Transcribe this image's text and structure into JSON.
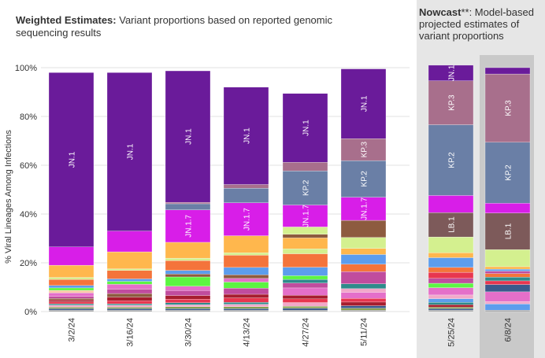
{
  "header": {
    "left_title_bold": "Weighted Estimates:",
    "left_title_rest": " Variant proportions based on reported genomic sequencing results",
    "right_title_bold": "Nowcast",
    "right_title_rest": "**: Model-based projected estimates of variant proportions"
  },
  "colors": {
    "JN.1": "#6a1b9a",
    "JN.1.7": "#d81ee8",
    "KP.2": "#6a7fa6",
    "KP.3": "#a86f8c",
    "LB.1": "#7d5a5a",
    "gold": "#ffb74d",
    "orange": "#f4743b",
    "blue": "#5c9ded",
    "lime": "#d4f08f",
    "green": "#5cf542",
    "pink": "#e46fc9",
    "magenta": "#c04c9e",
    "darkred": "#a61d2e",
    "red": "#e8364f",
    "teal": "#2e8b8b",
    "navy": "#3b5a8c",
    "olive": "#88a050",
    "lightpink": "#f2a8c9",
    "peach": "#f9c9a6",
    "grey": "#9e9e9e",
    "brown": "#8d5b3f",
    "nowcast_panel": "#e6e6e6",
    "nowcast_highlight": "#c9c9c9"
  },
  "chart_data": {
    "type": "bar",
    "stacked": true,
    "ylabel": "% Viral Lineages Among Infections",
    "ylim": [
      0,
      100
    ],
    "yticks": [
      "0%",
      "20%",
      "40%",
      "60%",
      "80%",
      "100%"
    ],
    "categories": [
      "3/2/24",
      "3/16/24",
      "3/30/24",
      "4/13/24",
      "4/27/24",
      "5/11/24",
      "5/25/24",
      "6/8/24"
    ],
    "nowcast_categories": [
      "5/25/24",
      "6/8/24"
    ],
    "stacks": [
      [
        [
          "grey",
          0.6
        ],
        [
          "navy",
          0.6
        ],
        [
          "olive",
          0.6
        ],
        [
          "lightpink",
          0.8
        ],
        [
          "teal",
          0.6
        ],
        [
          "red",
          0.8
        ],
        [
          "darkred",
          0.8
        ],
        [
          "brown",
          0.6
        ],
        [
          "magenta",
          0.8
        ],
        [
          "pink",
          1.5
        ],
        [
          "peach",
          1.0
        ],
        [
          "green",
          1.0
        ],
        [
          "blue",
          1.0
        ],
        [
          "orange",
          2.5
        ],
        [
          "lime",
          0.8
        ],
        [
          "gold",
          5.0
        ],
        [
          "JN.1.7",
          7.5
        ],
        [
          "JN.1",
          71.5
        ]
      ],
      [
        [
          "grey",
          0.6
        ],
        [
          "navy",
          0.6
        ],
        [
          "olive",
          0.6
        ],
        [
          "lightpink",
          0.8
        ],
        [
          "teal",
          0.6
        ],
        [
          "red",
          1.2
        ],
        [
          "darkred",
          1.5
        ],
        [
          "brown",
          1.5
        ],
        [
          "magenta",
          1.8
        ],
        [
          "pink",
          2.0
        ],
        [
          "green",
          1.2
        ],
        [
          "blue",
          1.0
        ],
        [
          "orange",
          3.5
        ],
        [
          "lime",
          0.6
        ],
        [
          "gold",
          7.0
        ],
        [
          "JN.1.7",
          8.5
        ],
        [
          "JN.1",
          65.0
        ]
      ],
      [
        [
          "grey",
          0.6
        ],
        [
          "navy",
          0.6
        ],
        [
          "olive",
          0.8
        ],
        [
          "lightpink",
          0.8
        ],
        [
          "teal",
          0.8
        ],
        [
          "red",
          1.5
        ],
        [
          "darkred",
          1.5
        ],
        [
          "magenta",
          2.0
        ],
        [
          "pink",
          1.8
        ],
        [
          "green",
          3.8
        ],
        [
          "brown",
          1.2
        ],
        [
          "blue",
          1.5
        ],
        [
          "orange",
          4.0
        ],
        [
          "lime",
          1.0
        ],
        [
          "gold",
          6.5
        ],
        [
          "JN.1.7",
          13.3
        ],
        [
          "KP.2",
          2.5
        ],
        [
          "KP.3",
          0.6
        ],
        [
          "JN.1",
          53.9
        ]
      ],
      [
        [
          "grey",
          0.6
        ],
        [
          "navy",
          0.6
        ],
        [
          "olive",
          0.8
        ],
        [
          "lightpink",
          1.0
        ],
        [
          "teal",
          0.8
        ],
        [
          "red",
          1.8
        ],
        [
          "darkred",
          1.5
        ],
        [
          "magenta",
          2.5
        ],
        [
          "green",
          2.5
        ],
        [
          "pink",
          1.5
        ],
        [
          "brown",
          1.5
        ],
        [
          "blue",
          3.0
        ],
        [
          "orange",
          5.0
        ],
        [
          "lime",
          1.0
        ],
        [
          "gold",
          7.0
        ],
        [
          "JN.1.7",
          13.5
        ],
        [
          "KP.2",
          6.0
        ],
        [
          "KP.3",
          1.5
        ],
        [
          "JN.1",
          39.9
        ]
      ],
      [
        [
          "grey",
          0.6
        ],
        [
          "navy",
          0.8
        ],
        [
          "olive",
          0.8
        ],
        [
          "lightpink",
          1.5
        ],
        [
          "red",
          1.5
        ],
        [
          "darkred",
          1.5
        ],
        [
          "pink",
          3.0
        ],
        [
          "magenta",
          2.0
        ],
        [
          "teal",
          1.5
        ],
        [
          "green",
          1.5
        ],
        [
          "blue",
          3.5
        ],
        [
          "orange",
          5.5
        ],
        [
          "lime",
          2.0
        ],
        [
          "gold",
          4.5
        ],
        [
          "brown",
          1.5
        ],
        [
          "lime",
          3.0
        ],
        [
          "JN.1.7",
          9.0
        ],
        [
          "KP.2",
          14.0
        ],
        [
          "KP.3",
          3.5
        ],
        [
          "JN.1",
          28.2
        ]
      ],
      [
        [
          "grey",
          0.6
        ],
        [
          "olive",
          0.8
        ],
        [
          "navy",
          1.0
        ],
        [
          "darkred",
          1.5
        ],
        [
          "red",
          1.5
        ],
        [
          "pink",
          2.5
        ],
        [
          "lightpink",
          1.5
        ],
        [
          "teal",
          2.0
        ],
        [
          "magenta",
          5.0
        ],
        [
          "orange",
          3.0
        ],
        [
          "blue",
          4.0
        ],
        [
          "gold",
          2.5
        ],
        [
          "lime",
          4.5
        ],
        [
          "brown",
          7.0
        ],
        [
          "JN.1.7",
          9.5
        ],
        [
          "KP.2",
          15.0
        ],
        [
          "KP.3",
          9.0
        ],
        [
          "JN.1",
          28.6
        ]
      ],
      [
        [
          "grey",
          0.6
        ],
        [
          "navy",
          0.6
        ],
        [
          "olive",
          0.6
        ],
        [
          "darkred",
          1.0
        ],
        [
          "teal",
          1.0
        ],
        [
          "blue",
          1.5
        ],
        [
          "lightpink",
          1.5
        ],
        [
          "pink",
          3.0
        ],
        [
          "green",
          1.8
        ],
        [
          "magenta",
          2.0
        ],
        [
          "red",
          2.5
        ],
        [
          "orange",
          2.0
        ],
        [
          "blue",
          4.0
        ],
        [
          "gold",
          2.0
        ],
        [
          "lime",
          6.5
        ],
        [
          "LB.1",
          10.0
        ],
        [
          "JN.1.7",
          7.0
        ],
        [
          "KP.2",
          29.0
        ],
        [
          "KP.3",
          18.0
        ],
        [
          "JN.1",
          6.4
        ]
      ],
      [
        [
          "grey",
          0.6
        ],
        [
          "blue",
          2.5
        ],
        [
          "lightpink",
          1.0
        ],
        [
          "pink",
          4.0
        ],
        [
          "navy",
          3.0
        ],
        [
          "red",
          1.5
        ],
        [
          "teal",
          1.5
        ],
        [
          "orange",
          1.5
        ],
        [
          "magenta",
          1.0
        ],
        [
          "blue",
          0.8
        ],
        [
          "gold",
          1.0
        ],
        [
          "lime",
          7.0
        ],
        [
          "LB.1",
          15.0
        ],
        [
          "JN.1.7",
          4.0
        ],
        [
          "KP.2",
          25.0
        ],
        [
          "KP.3",
          28.0
        ],
        [
          "JN.1",
          2.6
        ]
      ]
    ],
    "inbar_labels": [
      [
        {
          "text": "JN.1",
          "series": "JN.1"
        }
      ],
      [
        {
          "text": "JN.1",
          "series": "JN.1"
        }
      ],
      [
        {
          "text": "JN.1",
          "series": "JN.1"
        },
        {
          "text": "JN.1.7",
          "series": "JN.1.7"
        }
      ],
      [
        {
          "text": "JN.1",
          "series": "JN.1"
        },
        {
          "text": "JN.1.7",
          "series": "JN.1.7"
        }
      ],
      [
        {
          "text": "JN.1",
          "series": "JN.1"
        },
        {
          "text": "KP.2",
          "series": "KP.2"
        },
        {
          "text": "JN.1.7",
          "series": "JN.1.7"
        }
      ],
      [
        {
          "text": "JN.1",
          "series": "JN.1"
        },
        {
          "text": "KP.3",
          "series": "KP.3"
        },
        {
          "text": "KP.2",
          "series": "KP.2"
        },
        {
          "text": "JN.1.7",
          "series": "JN.1.7"
        }
      ],
      [
        {
          "text": "JN.1",
          "series": "JN.1"
        },
        {
          "text": "KP.3",
          "series": "KP.3"
        },
        {
          "text": "KP.2",
          "series": "KP.2"
        },
        {
          "text": "LB.1",
          "series": "LB.1"
        }
      ],
      [
        {
          "text": "KP.3",
          "series": "KP.3"
        },
        {
          "text": "KP.2",
          "series": "KP.2"
        },
        {
          "text": "LB.1",
          "series": "LB.1"
        }
      ]
    ]
  }
}
